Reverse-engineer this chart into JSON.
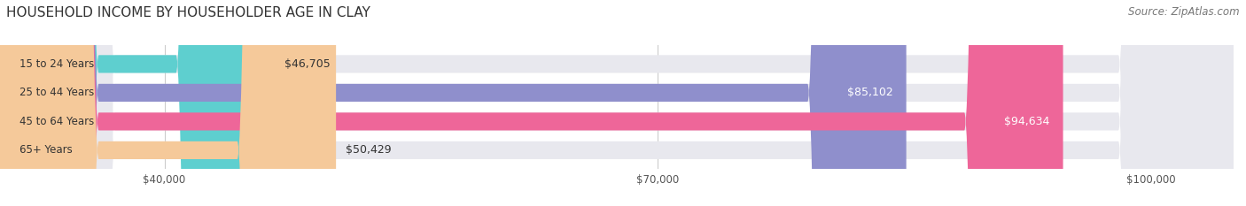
{
  "title": "HOUSEHOLD INCOME BY HOUSEHOLDER AGE IN CLAY",
  "source": "Source: ZipAtlas.com",
  "categories": [
    "15 to 24 Years",
    "25 to 44 Years",
    "45 to 64 Years",
    "65+ Years"
  ],
  "values": [
    46705,
    85102,
    94634,
    50429
  ],
  "bar_colors": [
    "#5ecfcf",
    "#8f8fcc",
    "#ee6699",
    "#f5c99a"
  ],
  "label_colors": [
    "#333333",
    "#ffffff",
    "#ffffff",
    "#333333"
  ],
  "xlim": [
    30000,
    105000
  ],
  "xticks": [
    40000,
    70000,
    100000
  ],
  "xtick_labels": [
    "$40,000",
    "$70,000",
    "$100,000"
  ],
  "background_color": "#ffffff",
  "title_fontsize": 11,
  "source_fontsize": 8.5,
  "bar_label_fontsize": 9,
  "category_fontsize": 8.5,
  "bar_height": 0.62,
  "figsize": [
    14.06,
    2.33
  ],
  "dpi": 100
}
